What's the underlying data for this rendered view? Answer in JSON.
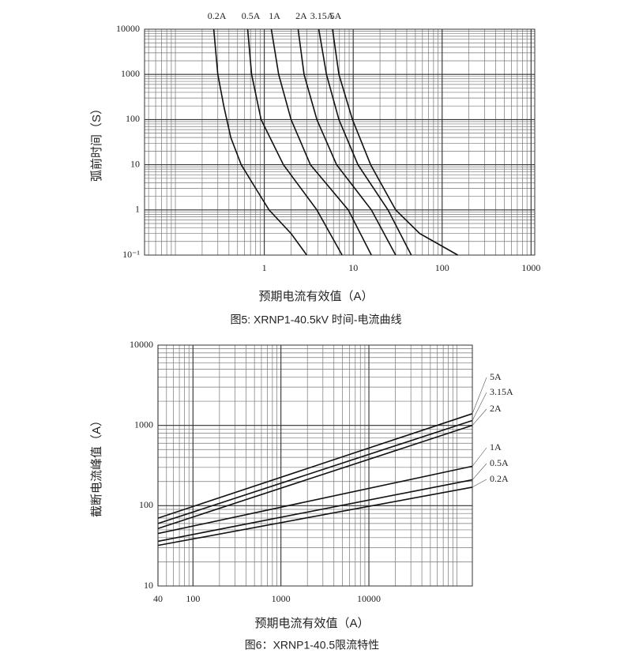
{
  "chart_data": [
    {
      "type": "line",
      "log_x": true,
      "log_y": true,
      "grid": true,
      "series_labels": "top",
      "title": "图5: XRNP1-40.5kV 时间-电流曲线",
      "xlabel": "预期电流有效值（A）",
      "ylabel": "弧前时间（S）",
      "xlim": [
        0.045,
        1100
      ],
      "ylim": [
        0.1,
        10000
      ],
      "xticks": [
        1,
        10,
        100,
        1000
      ],
      "yticks": [
        {
          "value": 0.1,
          "label": "10⁻¹"
        },
        1,
        10,
        100,
        1000,
        10000
      ],
      "series": [
        {
          "name": "0.2A",
          "color": "#111111",
          "x": [
            0.27,
            0.3,
            0.35,
            0.42,
            0.55,
            0.8,
            1.13,
            2,
            3
          ],
          "values": [
            10000,
            1000,
            200,
            40,
            10,
            3,
            1,
            0.3,
            0.1
          ]
        },
        {
          "name": "0.5A",
          "color": "#111111",
          "x": [
            0.65,
            0.72,
            0.92,
            1.64,
            3.9,
            7.5
          ],
          "values": [
            10000,
            1000,
            100,
            10,
            1,
            0.1
          ]
        },
        {
          "name": "1A",
          "color": "#111111",
          "x": [
            1.2,
            1.45,
            2,
            3.3,
            8.8,
            16
          ],
          "values": [
            10000,
            1000,
            100,
            10,
            1,
            0.1
          ]
        },
        {
          "name": "2A",
          "color": "#111111",
          "x": [
            2.4,
            2.8,
            3.9,
            6.5,
            16,
            30
          ],
          "values": [
            10000,
            1000,
            100,
            10,
            1,
            0.1
          ]
        },
        {
          "name": "3.15A",
          "color": "#111111",
          "x": [
            4.1,
            5,
            6.9,
            11.3,
            24.6,
            45
          ],
          "values": [
            10000,
            1000,
            100,
            10,
            1,
            0.1
          ]
        },
        {
          "name": "5A",
          "color": "#111111",
          "x": [
            5.85,
            6.9,
            9.8,
            15.7,
            30,
            56,
            150
          ],
          "values": [
            10000,
            1000,
            100,
            10,
            1,
            0.3,
            0.1
          ]
        }
      ]
    },
    {
      "type": "line",
      "log_x": true,
      "log_y": true,
      "grid": true,
      "series_labels": "right",
      "title": "图6：XRNP1-40.5限流特性",
      "xlabel": "预期电流有效值（A）",
      "ylabel": "截断电流峰值（A）",
      "xlim": [
        40,
        150000
      ],
      "ylim": [
        10,
        10000
      ],
      "xticks": [
        40,
        100,
        1000,
        10000
      ],
      "yticks": [
        10,
        100,
        1000,
        10000
      ],
      "series": [
        {
          "name": "5A",
          "color": "#111111",
          "x": [
            40,
            150000
          ],
          "values": [
            70,
            1400
          ]
        },
        {
          "name": "3.15A",
          "color": "#111111",
          "x": [
            40,
            150000
          ],
          "values": [
            60,
            1150
          ]
        },
        {
          "name": "2A",
          "color": "#111111",
          "x": [
            40,
            150000
          ],
          "values": [
            52,
            1000
          ]
        },
        {
          "name": "1A",
          "color": "#111111",
          "x": [
            40,
            150000
          ],
          "values": [
            45,
            310
          ]
        },
        {
          "name": "0.5A",
          "color": "#111111",
          "x": [
            40,
            150000
          ],
          "values": [
            36,
            210
          ]
        },
        {
          "name": "0.2A",
          "color": "#111111",
          "x": [
            40,
            150000
          ],
          "values": [
            32,
            170
          ]
        }
      ]
    }
  ]
}
